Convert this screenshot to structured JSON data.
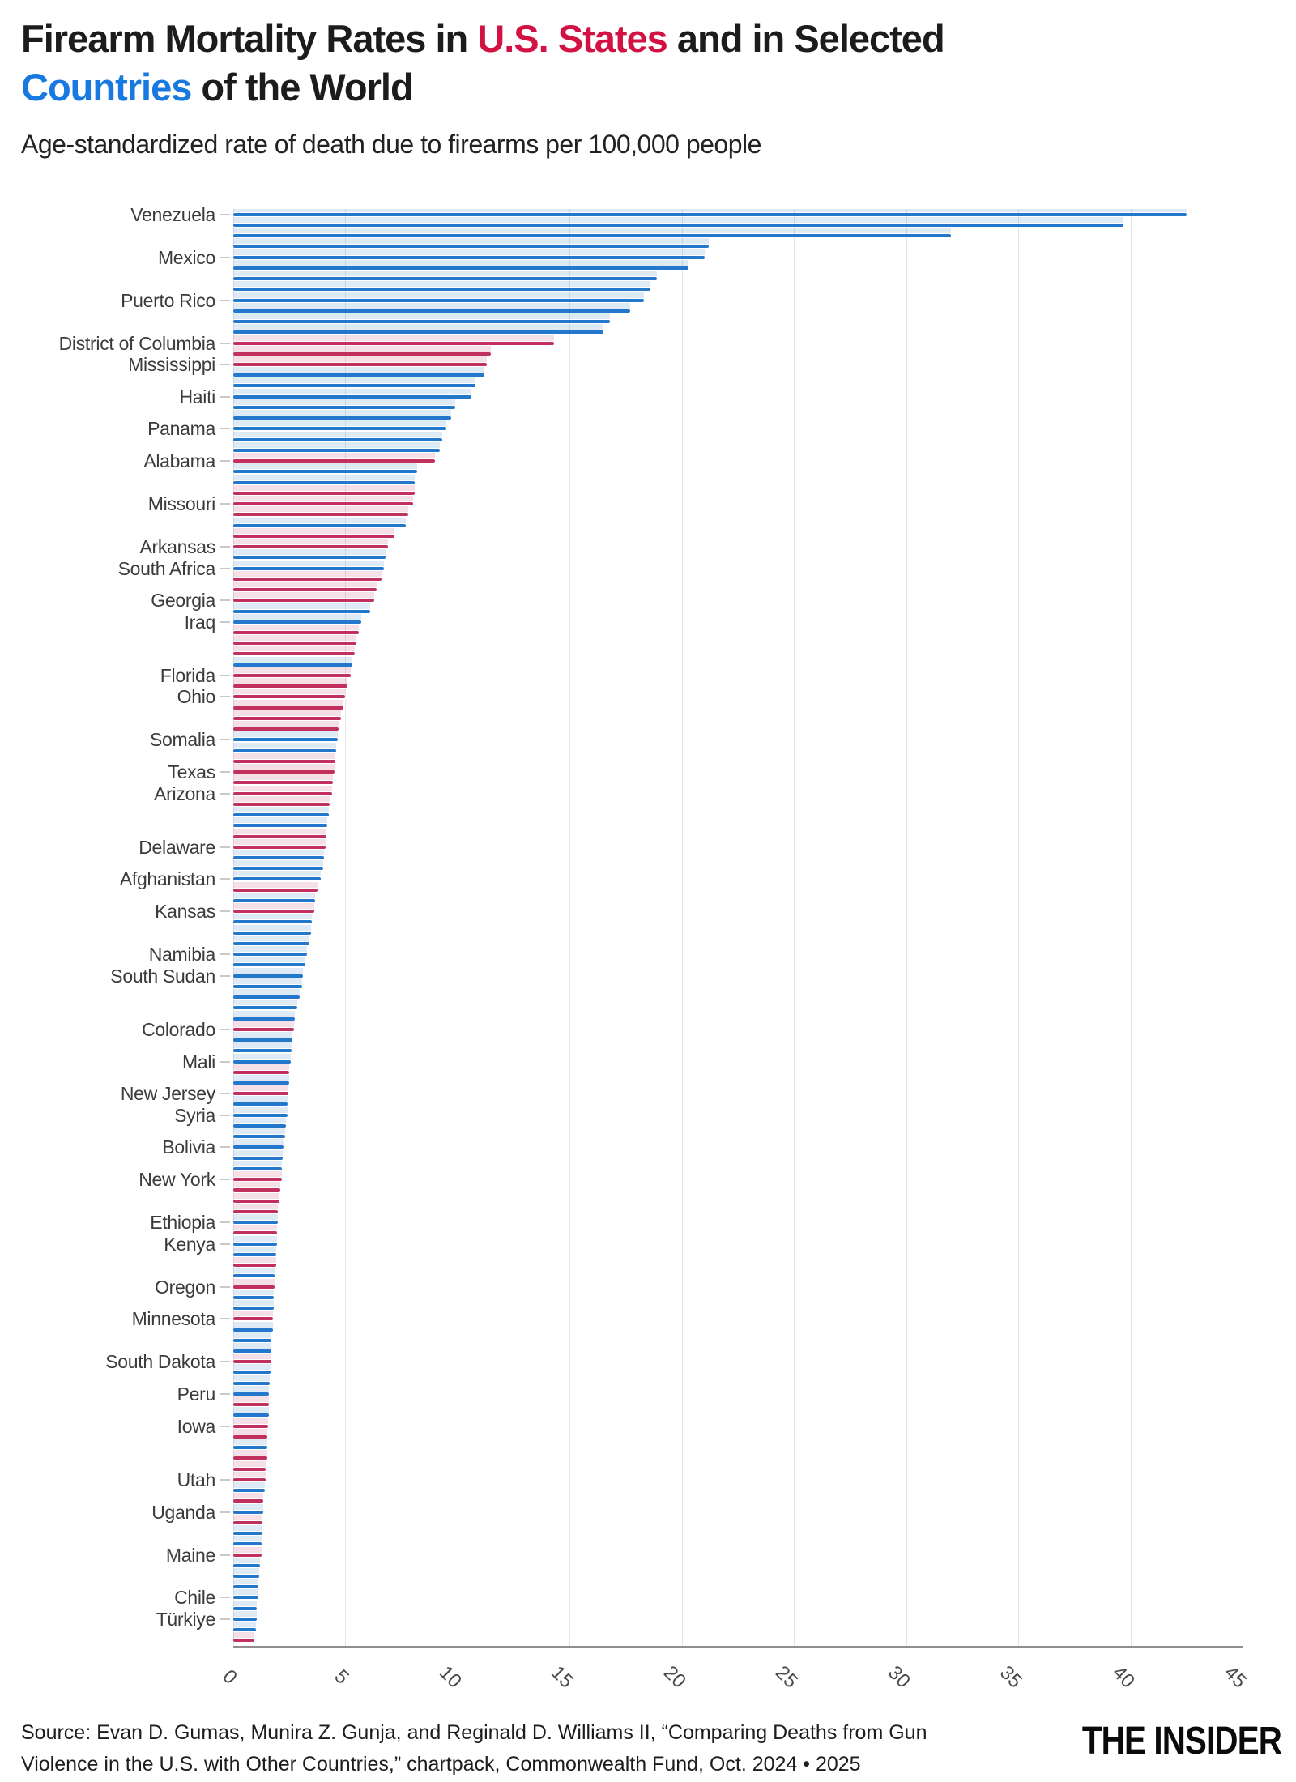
{
  "title": {
    "part1": "Firearm Mortality Rates in ",
    "part2_red": "U.S. States",
    "part3": " and in Selected",
    "part4_blue": "Countries",
    "part5": " of the World"
  },
  "subtitle": "Age-standardized rate of death due to firearms per 100,000 people",
  "footer": {
    "source_line1": "Source: Evan D. Gumas, Munira Z. Gunja, and Reginald D. Williams II, “Comparing Deaths from Gun",
    "source_line2": "Violence in the U.S. with Other Countries,” chartpack, Commonwealth Fund, Oct. 2024 • 2025",
    "logo": "THE INSIDER"
  },
  "colors": {
    "state_bar": "#c2315e",
    "country_bar": "#2478cb",
    "title_red": "#d11242",
    "title_blue": "#1879e0",
    "grid": "#e5e5e5",
    "axis_line": "#8f8f8f",
    "row_label": "#3b3b3b",
    "tick_label": "#4a4a4a"
  },
  "chart_data": {
    "type": "bar",
    "orientation": "horizontal",
    "title": "Firearm Mortality Rates in U.S. States and in Selected Countries of the World",
    "subtitle": "Age-standardized rate of death due to firearms per 100,000 people",
    "xlabel": "",
    "ylabel": "",
    "xlim": [
      0,
      45
    ],
    "x_ticks": [
      "0",
      "5",
      "10",
      "15",
      "20",
      "25",
      "30",
      "35",
      "40",
      "45"
    ],
    "grid": "vertical-light",
    "legend": "none (encoded in title: red = U.S. states, blue = countries)",
    "row_format": "[label (empty if unlabeled in figure), group: c=country(blue)/s=state(red), value per 100,000]",
    "rows": [
      [
        "Venezuela",
        "c",
        42.5
      ],
      [
        "",
        "c",
        39.7
      ],
      [
        "",
        "c",
        32.0
      ],
      [
        "",
        "c",
        21.2
      ],
      [
        "Mexico",
        "c",
        21.0
      ],
      [
        "",
        "c",
        20.3
      ],
      [
        "",
        "c",
        18.9
      ],
      [
        "",
        "c",
        18.6
      ],
      [
        "Puerto Rico",
        "c",
        18.3
      ],
      [
        "",
        "c",
        17.7
      ],
      [
        "",
        "c",
        16.8
      ],
      [
        "",
        "c",
        16.5
      ],
      [
        "District of Columbia",
        "s",
        14.3
      ],
      [
        "",
        "s",
        11.5
      ],
      [
        "Mississippi",
        "s",
        11.3
      ],
      [
        "",
        "c",
        11.2
      ],
      [
        "",
        "c",
        10.8
      ],
      [
        "Haiti",
        "c",
        10.6
      ],
      [
        "",
        "c",
        9.9
      ],
      [
        "",
        "c",
        9.7
      ],
      [
        "Panama",
        "c",
        9.5
      ],
      [
        "",
        "c",
        9.3
      ],
      [
        "",
        "c",
        9.2
      ],
      [
        "Alabama",
        "s",
        9.0
      ],
      [
        "",
        "c",
        8.2
      ],
      [
        "",
        "c",
        8.1
      ],
      [
        "",
        "s",
        8.1
      ],
      [
        "Missouri",
        "s",
        8.0
      ],
      [
        "",
        "s",
        7.8
      ],
      [
        "",
        "c",
        7.7
      ],
      [
        "",
        "s",
        7.2
      ],
      [
        "Arkansas",
        "s",
        6.9
      ],
      [
        "",
        "c",
        6.8
      ],
      [
        "South Africa",
        "c",
        6.7
      ],
      [
        "",
        "s",
        6.6
      ],
      [
        "",
        "s",
        6.4
      ],
      [
        "Georgia",
        "s",
        6.3
      ],
      [
        "",
        "c",
        6.1
      ],
      [
        "Iraq",
        "c",
        5.7
      ],
      [
        "",
        "s",
        5.6
      ],
      [
        "",
        "s",
        5.5
      ],
      [
        "",
        "s",
        5.4
      ],
      [
        "",
        "c",
        5.3
      ],
      [
        "Florida",
        "s",
        5.25
      ],
      [
        "",
        "s",
        5.1
      ],
      [
        "Ohio",
        "s",
        5.0
      ],
      [
        "",
        "s",
        4.9
      ],
      [
        "",
        "s",
        4.8
      ],
      [
        "",
        "s",
        4.7
      ],
      [
        "Somalia",
        "c",
        4.65
      ],
      [
        "",
        "c",
        4.6
      ],
      [
        "",
        "s",
        4.55
      ],
      [
        "Texas",
        "s",
        4.5
      ],
      [
        "",
        "s",
        4.45
      ],
      [
        "Arizona",
        "s",
        4.4
      ],
      [
        "",
        "s",
        4.3
      ],
      [
        "",
        "c",
        4.25
      ],
      [
        "",
        "c",
        4.2
      ],
      [
        "",
        "s",
        4.15
      ],
      [
        "Delaware",
        "s",
        4.1
      ],
      [
        "",
        "c",
        4.05
      ],
      [
        "",
        "c",
        4.0
      ],
      [
        "Afghanistan",
        "c",
        3.9
      ],
      [
        "",
        "s",
        3.75
      ],
      [
        "",
        "c",
        3.65
      ],
      [
        "Kansas",
        "s",
        3.6
      ],
      [
        "",
        "c",
        3.5
      ],
      [
        "",
        "c",
        3.45
      ],
      [
        "",
        "c",
        3.4
      ],
      [
        "Namibia",
        "c",
        3.3
      ],
      [
        "",
        "c",
        3.2
      ],
      [
        "South Sudan",
        "c",
        3.1
      ],
      [
        "",
        "c",
        3.05
      ],
      [
        "",
        "c",
        2.95
      ],
      [
        "",
        "c",
        2.85
      ],
      [
        "",
        "c",
        2.75
      ],
      [
        "Colorado",
        "s",
        2.7
      ],
      [
        "",
        "c",
        2.65
      ],
      [
        "",
        "c",
        2.6
      ],
      [
        "Mali",
        "c",
        2.55
      ],
      [
        "",
        "s",
        2.5
      ],
      [
        "",
        "c",
        2.5
      ],
      [
        "New Jersey",
        "s",
        2.45
      ],
      [
        "",
        "c",
        2.4
      ],
      [
        "Syria",
        "c",
        2.4
      ],
      [
        "",
        "c",
        2.35
      ],
      [
        "",
        "c",
        2.3
      ],
      [
        "Bolivia",
        "c",
        2.25
      ],
      [
        "",
        "c",
        2.2
      ],
      [
        "",
        "c",
        2.15
      ],
      [
        "New York",
        "s",
        2.15
      ],
      [
        "",
        "s",
        2.1
      ],
      [
        "",
        "s",
        2.05
      ],
      [
        "",
        "s",
        2.0
      ],
      [
        "Ethiopia",
        "c",
        2.0
      ],
      [
        "",
        "s",
        1.95
      ],
      [
        "Kenya",
        "c",
        1.95
      ],
      [
        "",
        "c",
        1.9
      ],
      [
        "",
        "s",
        1.9
      ],
      [
        "",
        "c",
        1.85
      ],
      [
        "Oregon",
        "s",
        1.85
      ],
      [
        "",
        "c",
        1.8
      ],
      [
        "",
        "c",
        1.8
      ],
      [
        "Minnesota",
        "s",
        1.75
      ],
      [
        "",
        "c",
        1.75
      ],
      [
        "",
        "c",
        1.7
      ],
      [
        "",
        "c",
        1.7
      ],
      [
        "South Dakota",
        "s",
        1.68
      ],
      [
        "",
        "c",
        1.65
      ],
      [
        "",
        "c",
        1.62
      ],
      [
        "Peru",
        "c",
        1.6
      ],
      [
        "",
        "s",
        1.6
      ],
      [
        "",
        "c",
        1.58
      ],
      [
        "Iowa",
        "s",
        1.55
      ],
      [
        "",
        "s",
        1.52
      ],
      [
        "",
        "c",
        1.5
      ],
      [
        "",
        "s",
        1.5
      ],
      [
        "",
        "s",
        1.45
      ],
      [
        "Utah",
        "s",
        1.45
      ],
      [
        "",
        "c",
        1.4
      ],
      [
        "",
        "s",
        1.35
      ],
      [
        "Uganda",
        "c",
        1.35
      ],
      [
        "",
        "s",
        1.3
      ],
      [
        "",
        "c",
        1.3
      ],
      [
        "",
        "c",
        1.25
      ],
      [
        "Maine",
        "s",
        1.25
      ],
      [
        "",
        "c",
        1.2
      ],
      [
        "",
        "c",
        1.15
      ],
      [
        "",
        "c",
        1.1
      ],
      [
        "Chile",
        "c",
        1.1
      ],
      [
        "",
        "c",
        1.05
      ],
      [
        "Türkiye",
        "c",
        1.05
      ],
      [
        "",
        "c",
        1.0
      ],
      [
        "",
        "s",
        0.95
      ]
    ]
  }
}
